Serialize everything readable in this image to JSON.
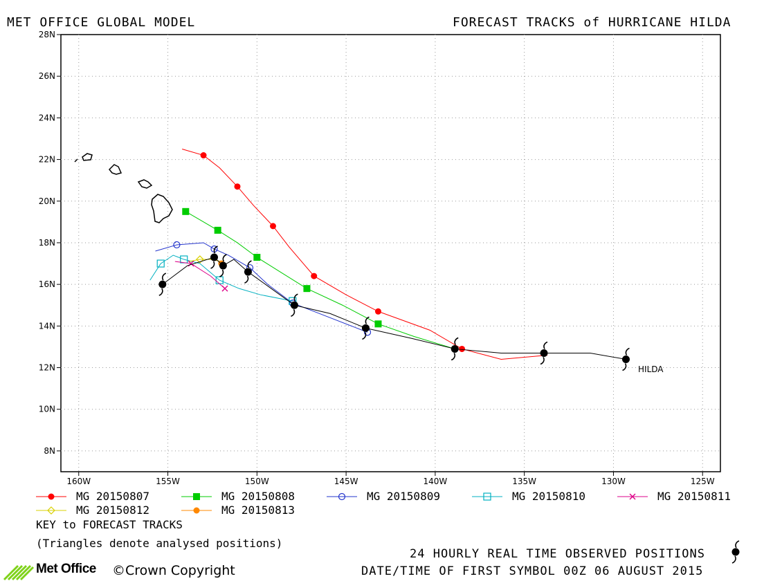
{
  "header": {
    "left_title": "MET OFFICE GLOBAL MODEL",
    "right_title": "FORECAST TRACKS of HURRICANE HILDA"
  },
  "storm_label": "HILDA",
  "chart_data": {
    "type": "scatter",
    "xlim": [
      -161,
      -124
    ],
    "ylim": [
      7,
      28
    ],
    "x_ticks": [
      -160,
      -155,
      -150,
      -145,
      -140,
      -135,
      -130,
      -125
    ],
    "x_tick_labels": [
      "160W",
      "155W",
      "150W",
      "145W",
      "140W",
      "135W",
      "130W",
      "125W"
    ],
    "y_ticks": [
      8,
      10,
      12,
      14,
      16,
      18,
      20,
      22,
      24,
      26,
      28
    ],
    "y_tick_labels": [
      "8N",
      "10N",
      "12N",
      "14N",
      "16N",
      "18N",
      "20N",
      "22N",
      "24N",
      "26N",
      "28N"
    ],
    "grid": true,
    "observed_track": [
      [
        -129.3,
        12.4
      ],
      [
        -131.3,
        12.7
      ],
      [
        -133.9,
        12.7
      ],
      [
        -136.3,
        12.7
      ],
      [
        -138.9,
        12.9
      ],
      [
        -141.3,
        13.4
      ],
      [
        -143.9,
        13.9
      ],
      [
        -145.9,
        14.6
      ],
      [
        -147.9,
        15.0
      ],
      [
        -149.2,
        15.8
      ],
      [
        -150.5,
        16.6
      ],
      [
        -151.3,
        17.2
      ],
      [
        -151.9,
        16.9
      ],
      [
        -152.4,
        17.3
      ],
      [
        -153.9,
        16.9
      ],
      [
        -155.3,
        16.0
      ]
    ],
    "observed_symbols": [
      [
        -129.3,
        12.4
      ],
      [
        -133.9,
        12.7
      ],
      [
        -138.9,
        12.9
      ],
      [
        -143.9,
        13.9
      ],
      [
        -147.9,
        15.0
      ],
      [
        -150.5,
        16.6
      ],
      [
        -151.9,
        16.9
      ],
      [
        -152.4,
        17.3
      ],
      [
        -155.3,
        16.0
      ]
    ],
    "series": [
      {
        "name": "MG 20150807",
        "color": "#ff0000",
        "marker": "filled-circle",
        "line": [
          [
            -133.7,
            12.6
          ],
          [
            -136.3,
            12.4
          ],
          [
            -138.5,
            12.9
          ],
          [
            -140.3,
            13.8
          ],
          [
            -143.2,
            14.7
          ],
          [
            -145.0,
            15.5
          ],
          [
            -146.8,
            16.4
          ],
          [
            -148.2,
            17.8
          ],
          [
            -149.1,
            18.8
          ],
          [
            -150.2,
            19.8
          ],
          [
            -151.1,
            20.7
          ],
          [
            -152.1,
            21.6
          ],
          [
            -153.0,
            22.2
          ],
          [
            -154.2,
            22.5
          ]
        ],
        "markers": [
          [
            -138.5,
            12.9
          ],
          [
            -143.2,
            14.7
          ],
          [
            -146.8,
            16.4
          ],
          [
            -149.1,
            18.8
          ],
          [
            -151.1,
            20.7
          ],
          [
            -153.0,
            22.2
          ]
        ]
      },
      {
        "name": "MG 20150808",
        "color": "#00cc00",
        "marker": "filled-square",
        "line": [
          [
            -138.9,
            12.9
          ],
          [
            -141.2,
            13.5
          ],
          [
            -143.2,
            14.1
          ],
          [
            -145.2,
            15.0
          ],
          [
            -147.2,
            15.8
          ],
          [
            -148.7,
            16.6
          ],
          [
            -150.0,
            17.3
          ],
          [
            -151.1,
            18.0
          ],
          [
            -152.2,
            18.6
          ],
          [
            -153.2,
            19.1
          ],
          [
            -154.0,
            19.5
          ]
        ],
        "markers": [
          [
            -143.2,
            14.1
          ],
          [
            -147.2,
            15.8
          ],
          [
            -150.0,
            17.3
          ],
          [
            -152.2,
            18.6
          ],
          [
            -154.0,
            19.5
          ]
        ]
      },
      {
        "name": "MG 20150809",
        "color": "#2233cc",
        "marker": "open-circle",
        "line": [
          [
            -143.8,
            13.7
          ],
          [
            -145.9,
            14.4
          ],
          [
            -148.0,
            15.1
          ],
          [
            -149.4,
            16.0
          ],
          [
            -150.4,
            16.8
          ],
          [
            -151.6,
            17.4
          ],
          [
            -152.4,
            17.7
          ],
          [
            -153.0,
            18.0
          ],
          [
            -154.5,
            17.9
          ],
          [
            -155.7,
            17.6
          ]
        ],
        "markers": [
          [
            -143.8,
            13.7
          ],
          [
            -148.0,
            15.1
          ],
          [
            -150.4,
            16.8
          ],
          [
            -152.4,
            17.7
          ],
          [
            -154.5,
            17.9
          ]
        ]
      },
      {
        "name": "MG 20150810",
        "color": "#00b0c0",
        "marker": "open-square",
        "line": [
          [
            -148.0,
            15.2
          ],
          [
            -149.8,
            15.5
          ],
          [
            -151.0,
            15.8
          ],
          [
            -152.1,
            16.2
          ],
          [
            -153.2,
            17.0
          ],
          [
            -154.1,
            17.2
          ],
          [
            -154.7,
            17.4
          ],
          [
            -155.4,
            17.0
          ],
          [
            -156.0,
            16.2
          ]
        ],
        "markers": [
          [
            -148.0,
            15.2
          ],
          [
            -152.1,
            16.2
          ],
          [
            -154.1,
            17.2
          ],
          [
            -155.4,
            17.0
          ]
        ]
      },
      {
        "name": "MG 20150811",
        "color": "#dd0088",
        "marker": "cross",
        "line": [
          [
            -151.8,
            15.8
          ],
          [
            -152.6,
            16.4
          ],
          [
            -153.7,
            17.0
          ],
          [
            -154.6,
            17.1
          ]
        ],
        "markers": [
          [
            -151.8,
            15.8
          ],
          [
            -153.7,
            17.0
          ]
        ]
      },
      {
        "name": "MG 20150812",
        "color": "#d8d000",
        "marker": "open-diamond",
        "line": [
          [
            -152.0,
            17.1
          ],
          [
            -152.6,
            17.2
          ],
          [
            -153.2,
            17.2
          ],
          [
            -153.8,
            17.1
          ]
        ],
        "markers": [
          [
            -153.2,
            17.2
          ]
        ]
      },
      {
        "name": "MG 20150813",
        "color": "#ff8800",
        "marker": "filled-circle",
        "line": [
          [
            -152.0,
            17.0
          ],
          [
            -152.3,
            17.2
          ]
        ],
        "markers": [
          [
            -152.0,
            17.0
          ]
        ]
      }
    ]
  },
  "key": {
    "line1": "KEY to FORECAST TRACKS",
    "line2": "(Triangles denote analysed positions)"
  },
  "footer": {
    "observed": "24 HOURLY REAL TIME OBSERVED POSITIONS",
    "datetime": "DATE/TIME OF FIRST SYMBOL 00Z 06 AUGUST 2015",
    "logo_text": "Met Office",
    "copyright": "©Crown Copyright"
  }
}
